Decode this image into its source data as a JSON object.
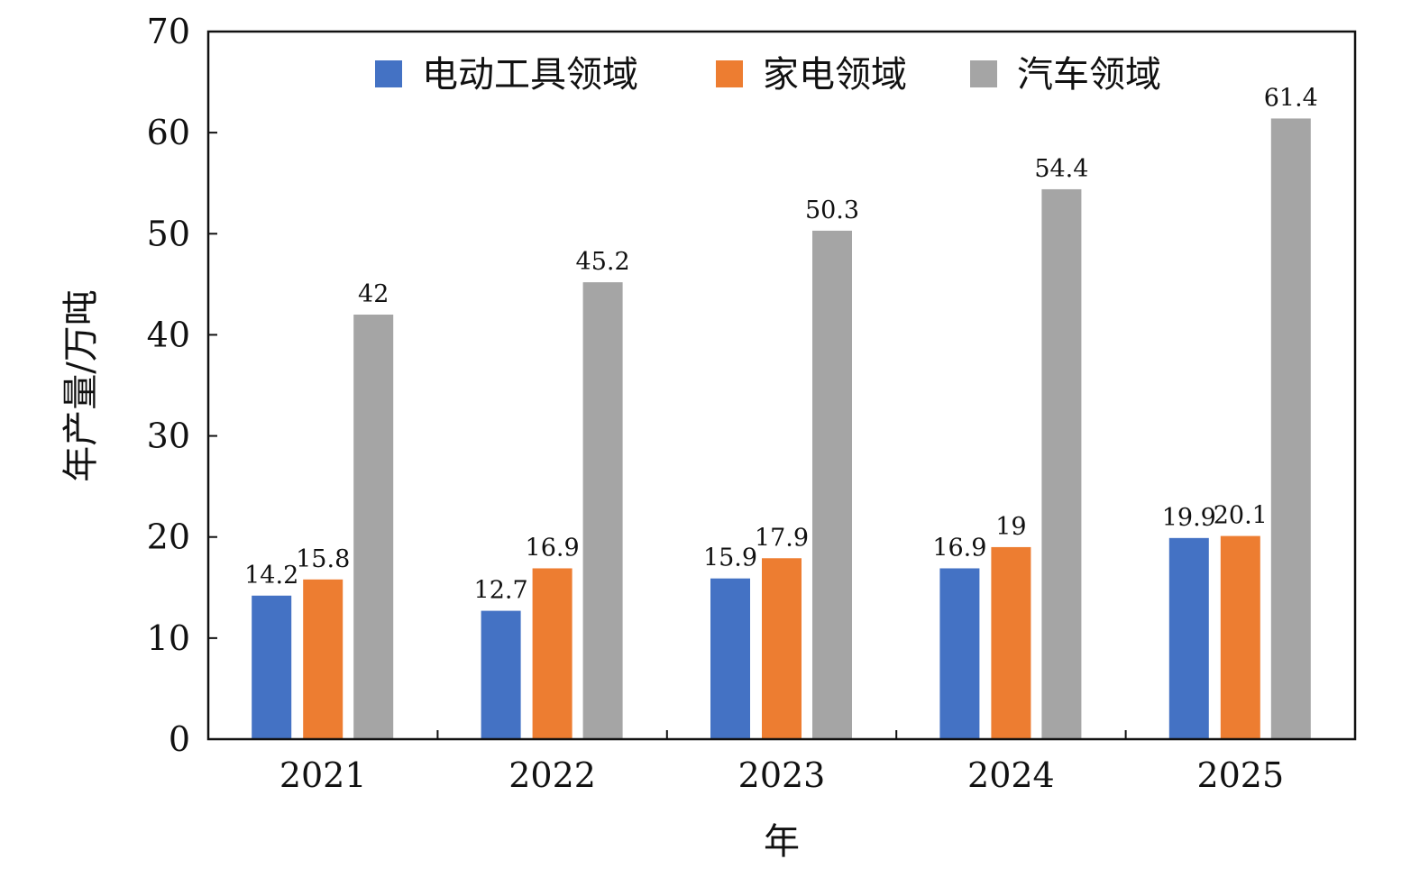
{
  "chart_data": {
    "type": "bar",
    "title": "",
    "xlabel": "年",
    "ylabel": "年产量/万吨",
    "categories": [
      "2021",
      "2022",
      "2023",
      "2024",
      "2025"
    ],
    "ylim": [
      0,
      70
    ],
    "yticks": [
      0,
      10,
      20,
      30,
      40,
      50,
      60,
      70
    ],
    "grid": false,
    "legend_placement": "top",
    "series": [
      {
        "name": "电动工具领域",
        "color": "#4472C4",
        "values": [
          14.2,
          12.7,
          15.9,
          16.9,
          19.9
        ],
        "labels": [
          "14.2",
          "12.7",
          "15.9",
          "16.9",
          "19.9"
        ]
      },
      {
        "name": "家电领域",
        "color": "#ED7D31",
        "values": [
          15.8,
          16.9,
          17.9,
          19,
          20.1
        ],
        "labels": [
          "15.8",
          "16.9",
          "17.9",
          "19",
          "20.1"
        ]
      },
      {
        "name": "汽车领域",
        "color": "#A5A5A5",
        "values": [
          42,
          45.2,
          50.3,
          54.4,
          61.4
        ],
        "labels": [
          "42",
          "45.2",
          "50.3",
          "54.4",
          "61.4"
        ]
      }
    ]
  }
}
